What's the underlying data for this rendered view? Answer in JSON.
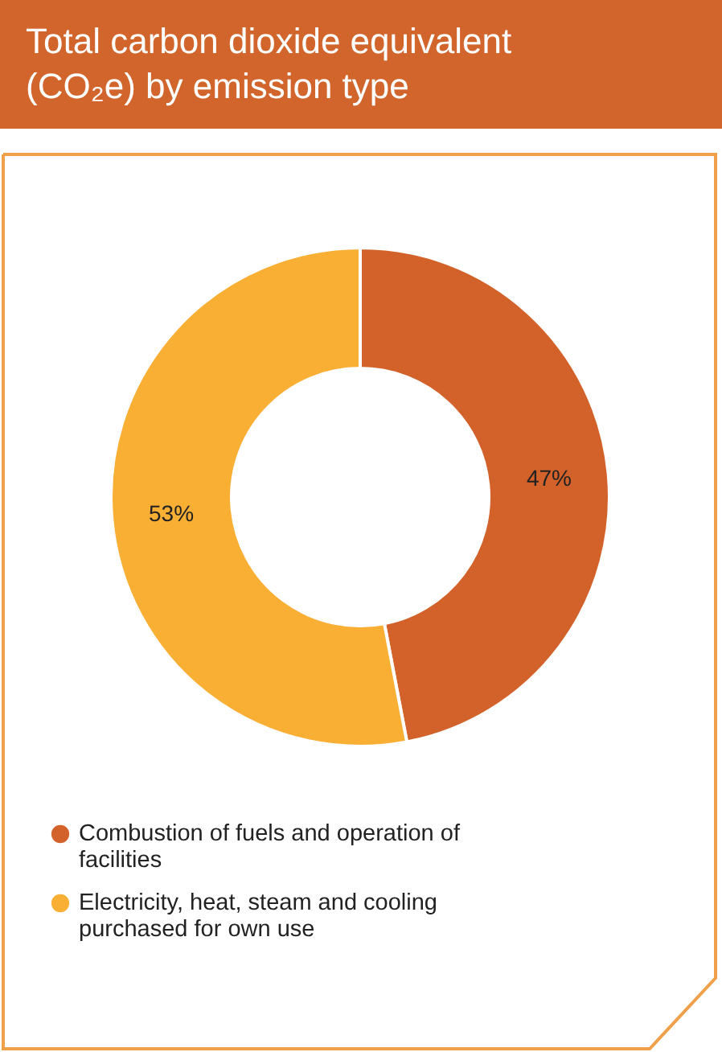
{
  "chart_data": {
    "type": "donut",
    "title": "Total carbon dioxide equivalent (CO₂e) by emission type",
    "categories": [
      "Combustion of fuels and operation of facilities",
      "Electricity, heat, steam and cooling purchased for own use"
    ],
    "values": [
      47,
      53
    ],
    "colors": [
      "#d2622a",
      "#f9ae34"
    ],
    "value_labels": [
      "47%",
      "53%"
    ],
    "legend": "bottom left"
  }
}
